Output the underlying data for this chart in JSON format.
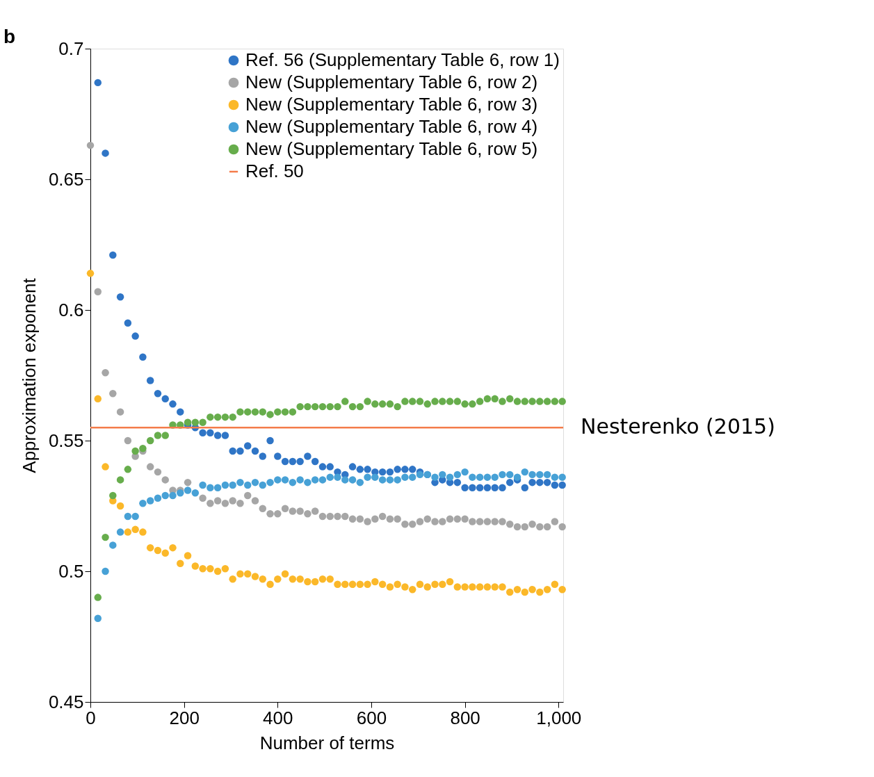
{
  "chart_data": {
    "type": "scatter",
    "xlabel": "Number of terms",
    "ylabel": "Approximation exponent",
    "x": [
      0,
      16,
      32,
      48,
      64,
      80,
      96,
      112,
      128,
      144,
      160,
      176,
      192,
      208,
      224,
      240,
      256,
      272,
      288,
      304,
      320,
      336,
      352,
      368,
      384,
      400,
      416,
      432,
      448,
      464,
      480,
      496,
      512,
      528,
      544,
      560,
      576,
      592,
      608,
      624,
      640,
      656,
      672,
      688,
      704,
      720,
      736,
      752,
      768,
      784,
      800,
      816,
      832,
      848,
      864,
      880,
      896,
      912,
      928,
      944,
      960,
      976,
      992,
      1008
    ],
    "series": [
      {
        "name": "Ref. 56 (Supplementary Table 6, row 1)",
        "color": "#2f75c6",
        "values": [
          null,
          0.687,
          0.66,
          0.621,
          0.605,
          0.595,
          0.59,
          0.582,
          0.573,
          0.568,
          0.566,
          0.564,
          0.561,
          0.556,
          0.555,
          0.553,
          0.553,
          0.552,
          0.552,
          0.546,
          0.546,
          0.548,
          0.546,
          0.544,
          0.55,
          0.544,
          0.542,
          0.542,
          0.542,
          0.544,
          0.542,
          0.54,
          0.54,
          0.538,
          0.537,
          0.54,
          0.539,
          0.539,
          0.538,
          0.538,
          0.538,
          0.539,
          0.539,
          0.539,
          0.538,
          0.537,
          0.534,
          0.535,
          0.534,
          0.534,
          0.532,
          0.532,
          0.532,
          0.532,
          0.532,
          0.532,
          0.534,
          0.535,
          0.532,
          0.534,
          0.534,
          0.534,
          0.533,
          0.533
        ]
      },
      {
        "name": "New (Supplementary Table 6, row 2)",
        "color": "#a6a6a6",
        "values": [
          0.663,
          0.607,
          0.576,
          0.568,
          0.561,
          0.55,
          0.544,
          0.546,
          0.54,
          0.538,
          0.535,
          0.531,
          0.531,
          0.534,
          null,
          0.528,
          0.526,
          0.527,
          0.526,
          0.527,
          0.526,
          0.529,
          0.527,
          0.524,
          0.522,
          0.522,
          0.524,
          0.523,
          0.523,
          0.522,
          0.523,
          0.521,
          0.521,
          0.521,
          0.521,
          0.52,
          0.52,
          0.519,
          0.52,
          0.521,
          0.52,
          0.52,
          0.518,
          0.518,
          0.519,
          0.52,
          0.519,
          0.519,
          0.52,
          0.52,
          0.52,
          0.519,
          0.519,
          0.519,
          0.519,
          0.519,
          0.518,
          0.517,
          0.517,
          0.518,
          0.517,
          0.517,
          0.519,
          0.517
        ]
      },
      {
        "name": "New (Supplementary Table 6, row 3)",
        "color": "#fbb829",
        "values": [
          0.614,
          0.566,
          0.54,
          0.527,
          0.525,
          0.515,
          0.516,
          0.515,
          0.509,
          0.508,
          0.507,
          0.509,
          0.503,
          0.506,
          0.502,
          0.501,
          0.501,
          0.5,
          0.501,
          0.497,
          0.499,
          0.499,
          0.498,
          0.497,
          0.495,
          0.497,
          0.499,
          0.497,
          0.497,
          0.496,
          0.496,
          0.497,
          0.497,
          0.495,
          0.495,
          0.495,
          0.495,
          0.495,
          0.496,
          0.495,
          0.494,
          0.495,
          0.494,
          0.493,
          0.495,
          0.494,
          0.495,
          0.495,
          0.496,
          0.494,
          0.494,
          0.494,
          0.494,
          0.494,
          0.494,
          0.494,
          0.492,
          0.493,
          0.492,
          0.493,
          0.492,
          0.493,
          0.495,
          0.493
        ]
      },
      {
        "name": "New (Supplementary Table 6, row 4)",
        "color": "#47a1d6",
        "values": [
          null,
          0.482,
          0.5,
          0.51,
          0.515,
          0.521,
          0.521,
          0.526,
          0.527,
          0.528,
          0.529,
          0.529,
          0.53,
          0.531,
          0.53,
          0.533,
          0.532,
          0.532,
          0.533,
          0.533,
          0.534,
          0.533,
          0.534,
          0.533,
          0.534,
          0.535,
          0.535,
          0.534,
          0.535,
          0.534,
          0.535,
          0.535,
          0.536,
          0.536,
          0.535,
          0.535,
          0.534,
          0.536,
          0.536,
          0.535,
          0.535,
          0.535,
          0.536,
          0.536,
          0.537,
          0.537,
          0.536,
          0.537,
          0.536,
          0.537,
          0.538,
          0.536,
          0.536,
          0.536,
          0.536,
          0.537,
          0.537,
          0.536,
          0.538,
          0.537,
          0.537,
          0.537,
          0.536,
          0.536
        ]
      },
      {
        "name": "New (Supplementary Table 6, row 5)",
        "color": "#67ad4c",
        "values": [
          null,
          0.49,
          0.513,
          0.529,
          0.535,
          0.539,
          0.546,
          0.547,
          0.55,
          0.552,
          0.552,
          0.556,
          0.556,
          0.557,
          0.557,
          0.557,
          0.559,
          0.559,
          0.559,
          0.559,
          0.561,
          0.561,
          0.561,
          0.561,
          0.56,
          0.561,
          0.561,
          0.561,
          0.563,
          0.563,
          0.563,
          0.563,
          0.563,
          0.563,
          0.565,
          0.563,
          0.563,
          0.565,
          0.564,
          0.564,
          0.564,
          0.563,
          0.565,
          0.565,
          0.565,
          0.564,
          0.565,
          0.565,
          0.565,
          0.565,
          0.564,
          0.564,
          0.565,
          0.566,
          0.566,
          0.565,
          0.566,
          0.565,
          0.565,
          0.565,
          0.565,
          0.565,
          0.565,
          0.565
        ]
      }
    ],
    "ref_lines": [
      {
        "axis": "y",
        "value": 0.555,
        "label": "Ref. 50",
        "color": "#f47c4a",
        "line_style": "solid"
      }
    ],
    "annotations": [
      "b",
      "Nesterenko (2015)"
    ],
    "xlim": [
      0,
      1010
    ],
    "xticks": [
      0,
      200,
      400,
      600,
      800,
      {
        "value": 1000,
        "label": "1,000"
      }
    ],
    "ylim": [
      0.45,
      0.7
    ],
    "yticks": [
      0.45,
      0.5,
      0.55,
      0.6,
      0.65,
      0.7
    ],
    "marker": "circle",
    "grid": false,
    "legend": "top right"
  }
}
